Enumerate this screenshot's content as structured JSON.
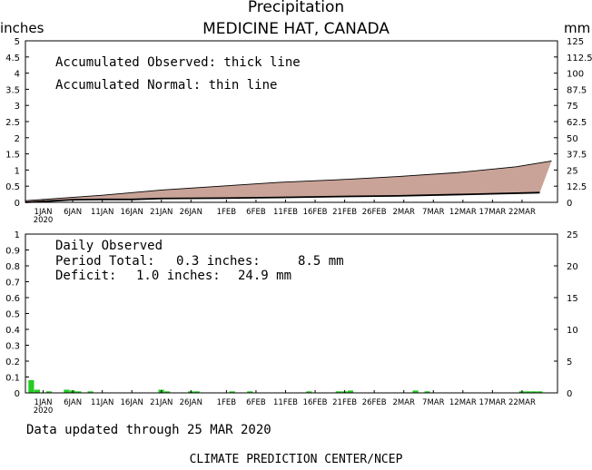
{
  "header": {
    "title": "Precipitation",
    "location": "MEDICINE HAT, CANADA",
    "left_unit": "inches",
    "right_unit": "mm"
  },
  "footer": {
    "updated": "Data updated through 25 MAR 2020",
    "credit": "CLIMATE PREDICTION CENTER/NCEP"
  },
  "colors": {
    "accum_fill": "#c9a398",
    "daily_bar": "#22cc22"
  },
  "chart_data": [
    {
      "type": "area",
      "annotations": {
        "observed": "Accumulated Observed: thick line",
        "normal": "Accumulated Normal: thin line"
      },
      "x_ticks": [
        "1JAN",
        "6JAN",
        "11JAN",
        "16JAN",
        "21JAN",
        "26JAN",
        "1FEB",
        "6FEB",
        "11FEB",
        "16FEB",
        "21FEB",
        "26FEB",
        "2MAR",
        "7MAR",
        "12MAR",
        "17MAR",
        "22MAR"
      ],
      "x_year": "2020",
      "y_left_ticks": [
        "0",
        "0.5",
        "1",
        "1.5",
        "2",
        "2.5",
        "3",
        "3.5",
        "4",
        "4.5",
        "5"
      ],
      "y_right_ticks": [
        "0",
        "12.5",
        "25",
        "37.5",
        "50",
        "62.5",
        "75",
        "87.5",
        "100",
        "112.5",
        "125"
      ],
      "ylim": [
        0,
        5
      ],
      "xlim_days": [
        -3,
        87
      ],
      "series": [
        {
          "role": "observed",
          "day": [
            -3,
            0,
            3,
            5,
            10,
            15,
            20,
            30,
            40,
            50,
            60,
            70,
            84
          ],
          "values": [
            0.0,
            0.03,
            0.06,
            0.08,
            0.09,
            0.09,
            0.12,
            0.13,
            0.15,
            0.18,
            0.2,
            0.24,
            0.3
          ]
        },
        {
          "role": "normal",
          "day": [
            -3,
            0,
            10,
            20,
            30,
            40,
            50,
            60,
            70,
            80,
            86
          ],
          "values": [
            0.05,
            0.09,
            0.22,
            0.38,
            0.5,
            0.62,
            0.7,
            0.8,
            0.92,
            1.1,
            1.28
          ]
        }
      ]
    },
    {
      "type": "bar",
      "annotations": {
        "heading": "Daily Observed",
        "total_label": "Period Total:",
        "total_in": "0.3 inches:",
        "total_mm": "8.5 mm",
        "deficit_label": "Deficit:",
        "deficit_in": "1.0 inches:",
        "deficit_mm": "24.9 mm"
      },
      "x_ticks": [
        "1JAN",
        "6JAN",
        "11JAN",
        "16JAN",
        "21JAN",
        "26JAN",
        "1FEB",
        "6FEB",
        "11FEB",
        "16FEB",
        "21FEB",
        "26FEB",
        "2MAR",
        "7MAR",
        "12MAR",
        "17MAR",
        "22MAR"
      ],
      "x_year": "2020",
      "y_left_ticks": [
        "0",
        "0.1",
        "0.2",
        "0.3",
        "0.4",
        "0.5",
        "0.6",
        "0.7",
        "0.8",
        "0.9",
        "1"
      ],
      "y_right_ticks": [
        "0",
        "5",
        "10",
        "15",
        "20",
        "25"
      ],
      "ylim": [
        0,
        1
      ],
      "xlim_days": [
        -3,
        87
      ],
      "bars": {
        "day": [
          -2,
          -1,
          1,
          4,
          5,
          6,
          8,
          20,
          21,
          25,
          26,
          32,
          35,
          45,
          50,
          51,
          52,
          63,
          65,
          81,
          82,
          83,
          84
        ],
        "values": [
          0.08,
          0.02,
          0.01,
          0.02,
          0.015,
          0.01,
          0.01,
          0.02,
          0.01,
          0.01,
          0.01,
          0.01,
          0.01,
          0.01,
          0.01,
          0.01,
          0.015,
          0.015,
          0.01,
          0.01,
          0.01,
          0.01,
          0.01
        ]
      }
    }
  ]
}
